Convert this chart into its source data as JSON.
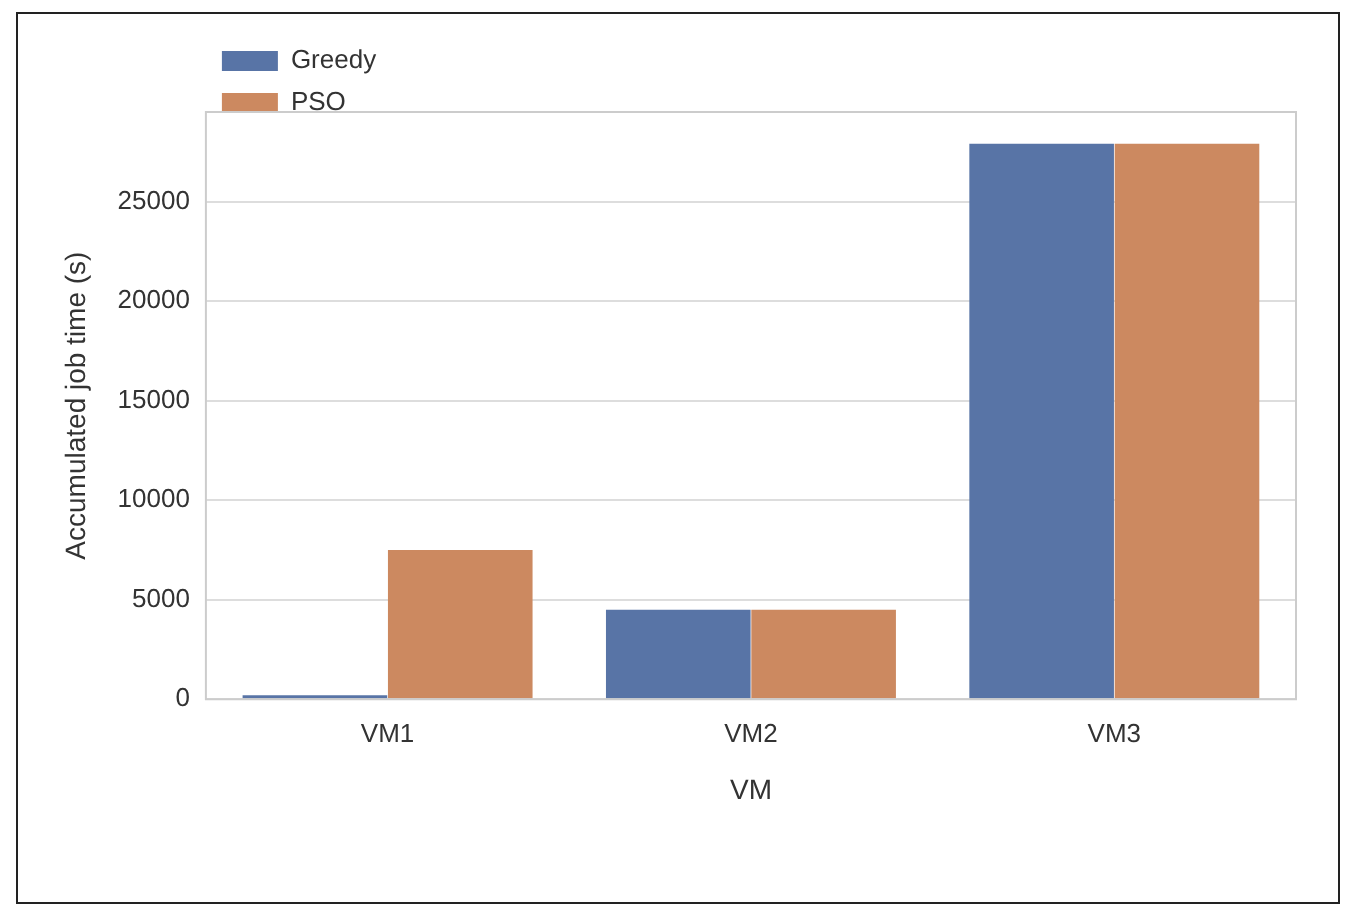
{
  "chart_data": {
    "type": "bar",
    "xlabel": "VM",
    "ylabel": "Accumulated job time (s)",
    "categories": [
      "VM1",
      "VM2",
      "VM3"
    ],
    "series": [
      {
        "name": "Greedy",
        "color": "#5874a6",
        "values": [
          200,
          4500,
          27900
        ]
      },
      {
        "name": "PSO",
        "color": "#cc8960",
        "values": [
          7500,
          4500,
          27900
        ]
      }
    ],
    "ylim": [
      0,
      29500
    ],
    "yticks": [
      0,
      5000,
      10000,
      15000,
      20000,
      25000
    ],
    "grid": "y",
    "legend": "top left"
  }
}
